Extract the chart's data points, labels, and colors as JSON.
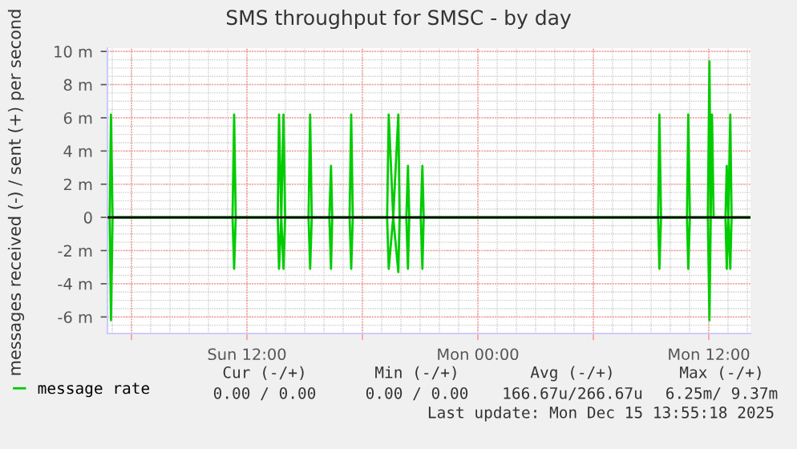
{
  "chart_data": {
    "type": "line",
    "title": "SMS throughput for SMSC - by day",
    "ylabel": "messages received (-) / sent (+) per second",
    "series": [
      {
        "name": "message rate",
        "color": "#00cc00",
        "x": [
          "2025-12-14T04:45",
          "2025-12-14T04:52",
          "2025-12-14T04:56",
          "2025-12-14T05:01",
          "2025-12-14T11:15",
          "2025-12-14T11:20",
          "2025-12-14T11:25",
          "2025-12-14T13:36",
          "2025-12-14T13:40",
          "2025-12-14T13:47",
          "2025-12-14T13:54",
          "2025-12-14T13:59",
          "2025-12-14T15:12",
          "2025-12-14T15:17",
          "2025-12-14T15:22",
          "2025-12-14T16:17",
          "2025-12-14T16:22",
          "2025-12-14T16:26",
          "2025-12-14T17:20",
          "2025-12-14T17:25",
          "2025-12-14T17:30",
          "2025-12-14T19:17",
          "2025-12-14T19:22",
          "2025-12-14T19:36",
          "2025-12-14T19:52",
          "2025-12-14T19:56",
          "2025-12-14T20:17",
          "2025-12-14T20:22",
          "2025-12-14T20:26",
          "2025-12-14T21:02",
          "2025-12-14T21:07",
          "2025-12-14T21:11",
          "2025-12-15T09:22",
          "2025-12-15T09:26",
          "2025-12-15T09:31",
          "2025-12-15T10:52",
          "2025-12-15T10:56",
          "2025-12-15T11:01",
          "2025-12-15T11:57",
          "2025-12-15T12:02",
          "2025-12-15T12:06",
          "2025-12-15T12:10",
          "2025-12-15T12:15",
          "2025-12-15T12:52",
          "2025-12-15T12:56",
          "2025-12-15T13:01",
          "2025-12-15T13:07",
          "2025-12-15T13:11",
          "2025-12-15T14:10"
        ],
        "values": [
          0,
          0,
          6.2,
          0,
          0,
          6.2,
          0,
          0,
          6.2,
          0,
          6.2,
          0,
          0,
          6.2,
          0,
          0,
          3.1,
          0,
          0,
          6.2,
          0,
          0,
          6.2,
          0,
          6.2,
          0,
          0,
          3.1,
          0,
          0,
          3.1,
          0,
          0,
          6.2,
          0,
          0,
          6.2,
          0,
          0,
          9.4,
          0,
          6.2,
          0,
          0,
          3.1,
          0,
          6.2,
          0,
          0
        ]
      },
      {
        "color": "#00cc00",
        "x": [
          "2025-12-14T04:45",
          "2025-12-14T04:52",
          "2025-12-14T04:56",
          "2025-12-14T05:01",
          "2025-12-14T11:15",
          "2025-12-14T11:20",
          "2025-12-14T11:25",
          "2025-12-14T13:36",
          "2025-12-14T13:40",
          "2025-12-14T13:47",
          "2025-12-14T13:54",
          "2025-12-14T13:59",
          "2025-12-14T15:12",
          "2025-12-14T15:17",
          "2025-12-14T15:22",
          "2025-12-14T16:17",
          "2025-12-14T16:22",
          "2025-12-14T16:26",
          "2025-12-14T17:20",
          "2025-12-14T17:25",
          "2025-12-14T17:30",
          "2025-12-14T19:17",
          "2025-12-14T19:22",
          "2025-12-14T19:36",
          "2025-12-14T19:52",
          "2025-12-14T19:56",
          "2025-12-14T20:17",
          "2025-12-14T20:22",
          "2025-12-14T20:26",
          "2025-12-14T21:02",
          "2025-12-14T21:07",
          "2025-12-14T21:11",
          "2025-12-15T09:22",
          "2025-12-15T09:26",
          "2025-12-15T09:31",
          "2025-12-15T10:52",
          "2025-12-15T10:56",
          "2025-12-15T11:01",
          "2025-12-15T11:57",
          "2025-12-15T12:02",
          "2025-12-15T12:06",
          "2025-12-15T12:52",
          "2025-12-15T12:56",
          "2025-12-15T13:01",
          "2025-12-15T13:07",
          "2025-12-15T13:11",
          "2025-12-15T14:10"
        ],
        "values": [
          0,
          0,
          -6.2,
          0,
          0,
          -3.1,
          0,
          0,
          -3.1,
          0,
          -3.1,
          0,
          0,
          -3.1,
          0,
          0,
          -3.1,
          0,
          0,
          -3.1,
          0,
          0,
          -3.1,
          0,
          -3.3,
          0,
          0,
          -3.1,
          0,
          0,
          -3.1,
          0,
          0,
          -3.1,
          0,
          0,
          -3.1,
          0,
          0,
          -6.2,
          0,
          0,
          -3.1,
          0,
          -3.1,
          0,
          0
        ]
      }
    ],
    "xlim": [
      "2025-12-14T04:45",
      "2025-12-15T14:10"
    ],
    "xticks": [
      {
        "value": "2025-12-14T06:00",
        "label": null
      },
      {
        "value": "2025-12-14T12:00",
        "label": "Sun 12:00"
      },
      {
        "value": "2025-12-14T18:00",
        "label": null
      },
      {
        "value": "2025-12-15T00:00",
        "label": "Mon 00:00"
      },
      {
        "value": "2025-12-15T06:00",
        "label": null
      },
      {
        "value": "2025-12-15T12:00",
        "label": "Mon 12:00"
      }
    ],
    "ylim": [
      -7,
      10.2
    ],
    "yticks": [
      {
        "value": -6,
        "label": "-6 m"
      },
      {
        "value": -4,
        "label": "-4 m"
      },
      {
        "value": -2,
        "label": "-2 m"
      },
      {
        "value": 0,
        "label": "0"
      },
      {
        "value": 2,
        "label": "2 m"
      },
      {
        "value": 4,
        "label": "4 m"
      },
      {
        "value": 6,
        "label": "6 m"
      },
      {
        "value": 8,
        "label": "8 m"
      },
      {
        "value": 10,
        "label": "10 m"
      }
    ],
    "ref_lines": [
      {
        "axis": "y",
        "value": 0,
        "color": "#000000"
      }
    ],
    "grid": true,
    "legend": "bottom left",
    "line_style": "solid",
    "annotations": [
      "Cur (-/+)",
      "Min (-/+)",
      "Avg (-/+)",
      "Max (-/+)",
      "0.00 / 0.00",
      "0.00 / 0.00",
      "166.67u/266.67u",
      "6.25m/ 9.37m",
      "Last update: Mon Dec 15 13:55:18 2025"
    ]
  }
}
